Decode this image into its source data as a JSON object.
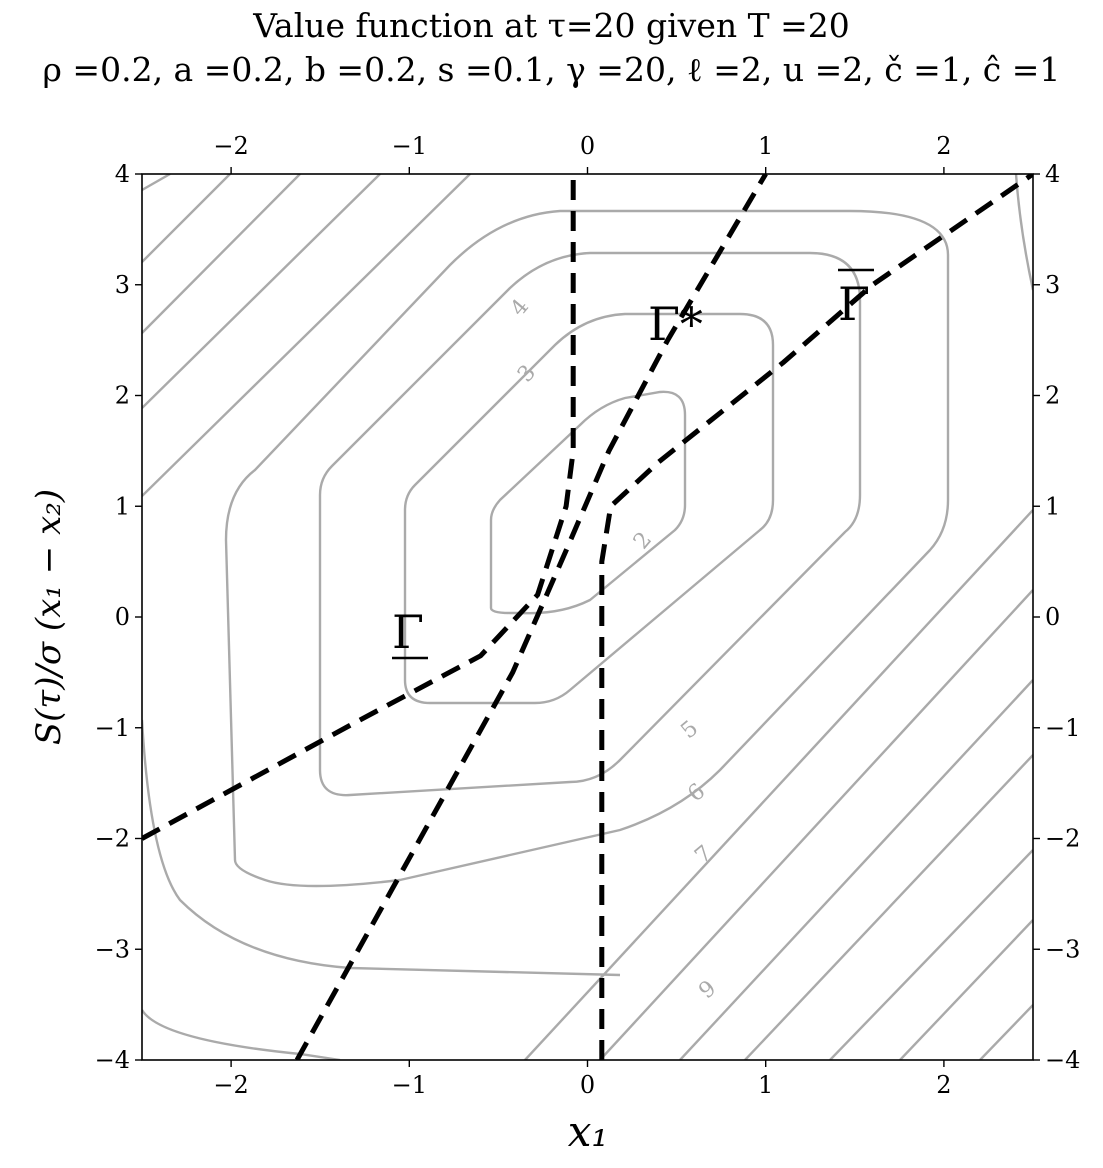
{
  "chart_data": {
    "type": "contour",
    "title": "Value function at τ=20 given T =20",
    "subtitle": "ρ =0.2, a =0.2, b =0.2, s =0.1, γ =20, ℓ =2, u =2, č =1, ĉ =1",
    "xlabel": "x₁",
    "ylabel": "S(τ)/σ (x₁ − x₂)",
    "xlim": [
      -2.5,
      2.5
    ],
    "ylim": [
      -4,
      4
    ],
    "x_ticks": [
      -2,
      -1,
      0,
      1,
      2
    ],
    "y_ticks": [
      -4,
      -3,
      -2,
      -1,
      0,
      1,
      2,
      3,
      4
    ],
    "grid": false,
    "contour_level_labels": [
      "2",
      "3",
      "4",
      "5",
      "6",
      "7",
      "9"
    ],
    "boundaries": [
      {
        "name": "Γ*",
        "label": "Γ*",
        "points": [
          [
            -1.63,
            -4
          ],
          [
            -0.42,
            -0.5
          ],
          [
            -0.12,
            0.6
          ],
          [
            0.12,
            1.5
          ],
          [
            0.45,
            2.5
          ],
          [
            1.0,
            4
          ]
        ]
      },
      {
        "name": "Γ̲",
        "label": "Γ",
        "points": [
          [
            -2.5,
            -2.0
          ],
          [
            -1.3,
            -0.95
          ],
          [
            -0.6,
            -0.35
          ],
          [
            -0.28,
            0.2
          ],
          [
            -0.12,
            1.0
          ],
          [
            -0.08,
            1.5
          ],
          [
            -0.08,
            4
          ]
        ]
      },
      {
        "name": "Γ̄",
        "label": "Γ",
        "points": [
          [
            0.08,
            -4
          ],
          [
            0.08,
            0.5
          ],
          [
            0.13,
            1.0
          ],
          [
            0.4,
            1.4
          ],
          [
            1.1,
            2.3
          ],
          [
            1.6,
            3.0
          ],
          [
            2.5,
            4.0
          ]
        ]
      }
    ],
    "colors": {
      "contour": "#aaaaaa",
      "boundary": "#000000"
    }
  }
}
